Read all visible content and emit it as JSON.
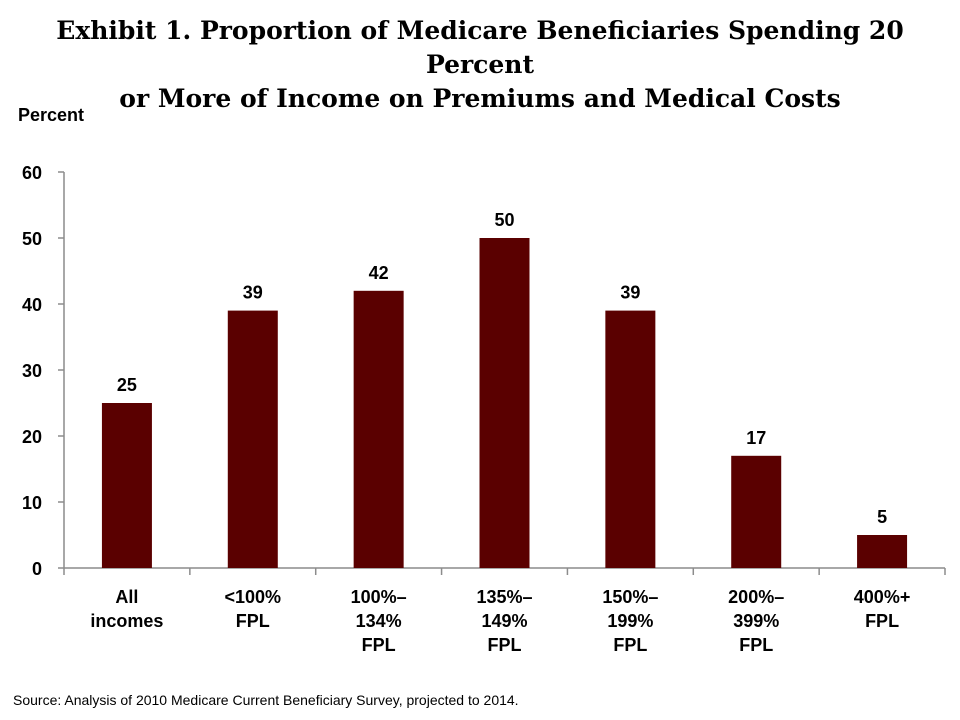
{
  "page": {
    "title_line1": "Exhibit 1. Proportion of Medicare Beneficiaries Spending 20 Percent",
    "title_line2": "or More of Income on Premiums and Medical Costs",
    "source": "Source: Analysis of 2010 Medicare Current Beneficiary Survey, projected to 2014."
  },
  "chart_data": {
    "type": "bar",
    "title": "Exhibit 1. Proportion of Medicare Beneficiaries Spending 20 Percent or More of Income on Premiums and Medical Costs",
    "xlabel": "",
    "ylabel": "Percent",
    "ylim": [
      0,
      60
    ],
    "yticks": [
      0,
      10,
      20,
      30,
      40,
      50,
      60
    ],
    "categories": [
      [
        "All",
        "incomes"
      ],
      [
        "<100%",
        "FPL"
      ],
      [
        "100%–",
        "134%",
        "FPL"
      ],
      [
        "135%–",
        "149%",
        "FPL"
      ],
      [
        "150%–",
        "199%",
        "FPL"
      ],
      [
        "200%–",
        "399%",
        "FPL"
      ],
      [
        "400%+",
        "FPL"
      ]
    ],
    "values": [
      25,
      39,
      42,
      50,
      39,
      17,
      5
    ],
    "bar_color": "#5a0000",
    "grid": false,
    "legend": "none"
  }
}
